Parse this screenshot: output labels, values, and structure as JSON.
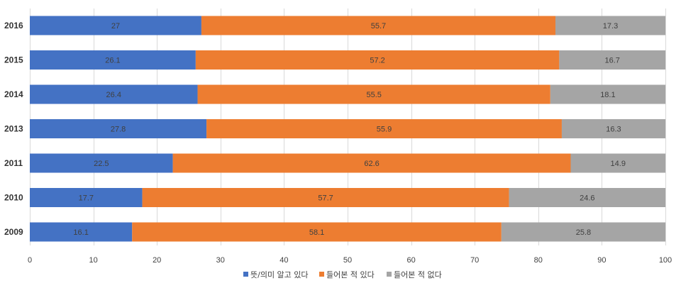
{
  "chart_data": {
    "type": "bar",
    "orientation": "horizontal",
    "stacked": true,
    "title": "",
    "xlabel": "",
    "ylabel": "",
    "xlim": [
      0,
      100
    ],
    "x_ticks": [
      0,
      10,
      20,
      30,
      40,
      50,
      60,
      70,
      80,
      90,
      100
    ],
    "grid": true,
    "legend_position": "bottom",
    "categories": [
      "2016",
      "2015",
      "2014",
      "2013",
      "2011",
      "2010",
      "2009"
    ],
    "series": [
      {
        "name": "뜻/의미 알고 있다",
        "color": "#4472c4",
        "values": [
          27,
          26.1,
          26.4,
          27.8,
          22.5,
          17.7,
          16.1
        ]
      },
      {
        "name": "들어본 적 있다",
        "color": "#ed7d31",
        "values": [
          55.7,
          57.2,
          55.5,
          55.9,
          62.6,
          57.7,
          58.1
        ]
      },
      {
        "name": "들어본 적 없다",
        "color": "#a5a5a5",
        "values": [
          17.3,
          16.7,
          18.1,
          16.3,
          14.9,
          24.6,
          25.8
        ]
      }
    ]
  }
}
